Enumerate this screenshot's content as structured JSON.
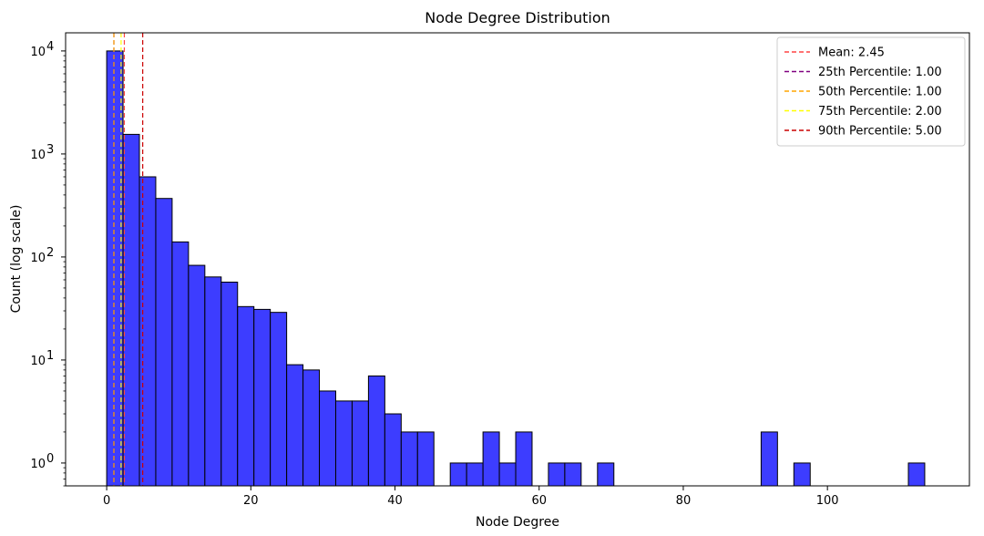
{
  "chart_data": {
    "type": "bar",
    "title": "Node Degree Distribution",
    "xlabel": "Node Degree",
    "ylabel": "Count (log scale)",
    "xlim": [
      -5.7,
      119.7
    ],
    "ylim": [
      0.6,
      15000
    ],
    "yscale": "log",
    "grid": false,
    "legend_position": "top-right",
    "bar_color": "#3333ff",
    "bar_edge_color": "#000000",
    "x_ticks": [
      0,
      20,
      40,
      60,
      80,
      100
    ],
    "x_tick_labels": [
      "0",
      "20",
      "40",
      "60",
      "80",
      "100"
    ],
    "y_ticks": [
      1,
      10,
      100,
      1000,
      10000
    ],
    "y_tick_labels": [
      {
        "base": "10",
        "exp": "0"
      },
      {
        "base": "10",
        "exp": "1"
      },
      {
        "base": "10",
        "exp": "2"
      },
      {
        "base": "10",
        "exp": "3"
      },
      {
        "base": "10",
        "exp": "4"
      }
    ],
    "bin_width": 2.27,
    "bins": [
      {
        "x0": 0.0,
        "count": 10000
      },
      {
        "x0": 2.27,
        "count": 1550
      },
      {
        "x0": 4.54,
        "count": 600
      },
      {
        "x0": 6.81,
        "count": 370
      },
      {
        "x0": 9.08,
        "count": 140
      },
      {
        "x0": 11.35,
        "count": 83
      },
      {
        "x0": 13.62,
        "count": 64
      },
      {
        "x0": 15.89,
        "count": 57
      },
      {
        "x0": 18.16,
        "count": 33
      },
      {
        "x0": 20.43,
        "count": 31
      },
      {
        "x0": 22.7,
        "count": 29
      },
      {
        "x0": 24.97,
        "count": 9
      },
      {
        "x0": 27.24,
        "count": 8
      },
      {
        "x0": 29.51,
        "count": 5
      },
      {
        "x0": 31.78,
        "count": 4
      },
      {
        "x0": 34.05,
        "count": 4
      },
      {
        "x0": 36.32,
        "count": 7
      },
      {
        "x0": 38.59,
        "count": 3
      },
      {
        "x0": 40.86,
        "count": 2
      },
      {
        "x0": 43.13,
        "count": 2
      },
      {
        "x0": 47.67,
        "count": 1
      },
      {
        "x0": 49.94,
        "count": 1
      },
      {
        "x0": 52.21,
        "count": 2
      },
      {
        "x0": 54.48,
        "count": 1
      },
      {
        "x0": 56.75,
        "count": 2
      },
      {
        "x0": 61.29,
        "count": 1
      },
      {
        "x0": 63.56,
        "count": 1
      },
      {
        "x0": 68.1,
        "count": 1
      },
      {
        "x0": 90.8,
        "count": 2
      },
      {
        "x0": 95.34,
        "count": 1
      },
      {
        "x0": 111.23,
        "count": 1
      }
    ],
    "vlines": [
      {
        "x": 2.45,
        "color": "#ff4444",
        "label": "Mean: 2.45"
      },
      {
        "x": 1.0,
        "color": "#800080",
        "label": "25th Percentile: 1.00"
      },
      {
        "x": 1.0,
        "color": "#ffa500",
        "label": "50th Percentile: 1.00"
      },
      {
        "x": 2.0,
        "color": "#ffff00",
        "label": "75th Percentile: 2.00"
      },
      {
        "x": 5.0,
        "color": "#cc0000",
        "label": "90th Percentile: 5.00"
      }
    ]
  }
}
